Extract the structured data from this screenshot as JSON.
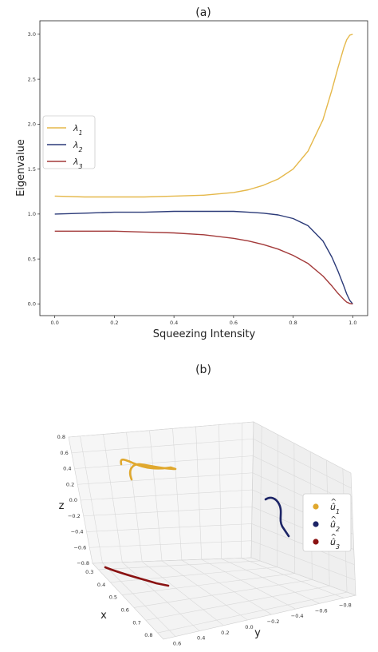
{
  "chart_data": [
    {
      "panel": "(a)",
      "type": "line",
      "xlabel": "Squeezing Intensity",
      "ylabel": "Eigenvalue",
      "xlim": [
        -0.05,
        1.05
      ],
      "ylim": [
        -0.13,
        3.15
      ],
      "xticks": [
        "0.0",
        "0.2",
        "0.4",
        "0.6",
        "0.8",
        "1.0"
      ],
      "yticks": [
        "0.0",
        "0.5",
        "1.0",
        "1.5",
        "2.0",
        "2.5",
        "3.0"
      ],
      "legend_position": "center-left",
      "grid": false,
      "x": [
        0.0,
        0.1,
        0.2,
        0.3,
        0.4,
        0.5,
        0.6,
        0.65,
        0.7,
        0.75,
        0.8,
        0.85,
        0.9,
        0.93,
        0.95,
        0.97,
        0.98,
        0.99,
        1.0
      ],
      "series": [
        {
          "name": "λ1",
          "color": "#e5b84a",
          "values": [
            1.2,
            1.19,
            1.19,
            1.19,
            1.2,
            1.21,
            1.24,
            1.27,
            1.32,
            1.39,
            1.5,
            1.7,
            2.05,
            2.38,
            2.62,
            2.85,
            2.94,
            2.99,
            3.0
          ]
        },
        {
          "name": "λ2",
          "color": "#2b3a78",
          "values": [
            1.0,
            1.01,
            1.02,
            1.02,
            1.03,
            1.03,
            1.03,
            1.02,
            1.01,
            0.99,
            0.95,
            0.87,
            0.7,
            0.52,
            0.37,
            0.2,
            0.11,
            0.04,
            0.0
          ]
        },
        {
          "name": "λ3",
          "color": "#a33a3a",
          "values": [
            0.81,
            0.81,
            0.81,
            0.8,
            0.79,
            0.77,
            0.73,
            0.7,
            0.66,
            0.61,
            0.54,
            0.45,
            0.31,
            0.2,
            0.12,
            0.05,
            0.02,
            0.005,
            0.0
          ]
        }
      ]
    },
    {
      "panel": "(b)",
      "type": "scatter",
      "projection": "3d",
      "xlabel": "x",
      "ylabel": "y",
      "zlabel": "z",
      "xticks": [
        "0.3",
        "0.4",
        "0.5",
        "0.6",
        "0.7",
        "0.8"
      ],
      "yticks": [
        "0.6",
        "0.4",
        "0.2",
        "0.0",
        "−0.2",
        "−0.4",
        "−0.6",
        "−0.8"
      ],
      "zticks": [
        "0.8",
        "0.6",
        "0.4",
        "0.2",
        "0.0",
        "−0.2",
        "−0.4",
        "−0.6",
        "−0.8"
      ],
      "grid": true,
      "legend_position": "right",
      "series": [
        {
          "name": "û1",
          "color": "#e0a82e"
        },
        {
          "name": "û2",
          "color": "#1c2466"
        },
        {
          "name": "û3",
          "color": "#8a1212"
        }
      ]
    }
  ]
}
